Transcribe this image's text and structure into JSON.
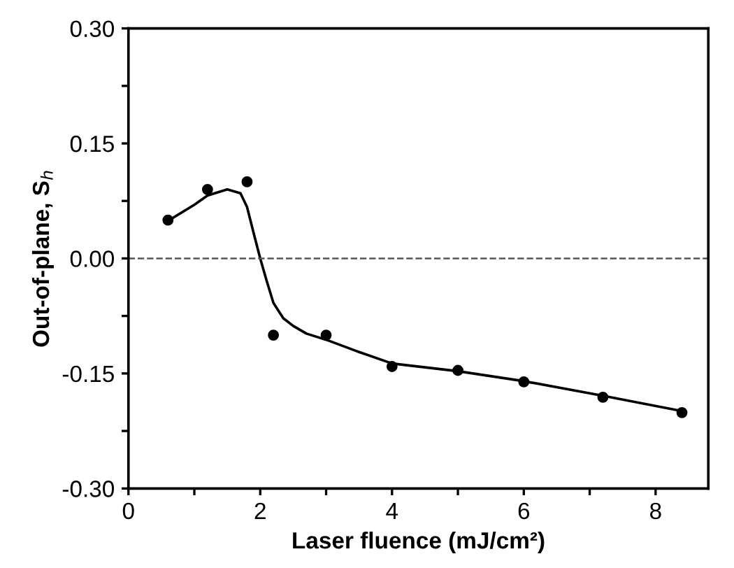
{
  "chart_data": {
    "type": "scatter",
    "xlabel": "Laser fluence (mJ/cm²)",
    "ylabel": "Out-of-plane, S$_{h}$",
    "xlim": [
      0,
      8.8
    ],
    "ylim": [
      -0.3,
      0.3
    ],
    "xticks": [
      0,
      {
        "value": 1,
        "label": null
      },
      2,
      {
        "value": 3,
        "label": null
      },
      4,
      {
        "value": 5,
        "label": null
      },
      6,
      {
        "value": 7,
        "label": null
      },
      8
    ],
    "yticks": [
      {
        "value": -0.3,
        "label": "-0.30"
      },
      {
        "value": -0.225,
        "label": null
      },
      {
        "value": -0.15,
        "label": "-0.15"
      },
      {
        "value": -0.075,
        "label": null
      },
      {
        "value": 0,
        "label": "0.00"
      },
      {
        "value": 0.075,
        "label": null
      },
      {
        "value": 0.15,
        "label": "0.15"
      },
      {
        "value": 0.225,
        "label": null
      },
      {
        "value": 0.3,
        "label": "0.30"
      }
    ],
    "grid": false,
    "marker": "circle",
    "ref_lines": [
      {
        "axis": "y",
        "value": 0,
        "line_style": "dashed",
        "color": "#555555"
      }
    ],
    "series": [
      {
        "color": "#000000",
        "x": [
          0.6,
          1.2,
          1.8,
          2.2,
          3.0,
          4.0,
          5.0,
          6.0,
          7.2,
          8.4
        ],
        "values": [
          0.05,
          0.09,
          0.1,
          -0.1,
          -0.1,
          -0.141,
          -0.146,
          -0.161,
          -0.181,
          -0.201
        ]
      },
      {
        "type": "line",
        "color": "#000000",
        "marker": "none",
        "line_style": "solid",
        "x": [
          0.6,
          1.0,
          1.2,
          1.5,
          1.7,
          1.8,
          1.9,
          2.0,
          2.1,
          2.2,
          2.35,
          2.5,
          2.7,
          3.0,
          3.5,
          4.0,
          5.0,
          6.0,
          7.2,
          8.4
        ],
        "values": [
          0.049,
          0.07,
          0.082,
          0.09,
          0.085,
          0.067,
          0.033,
          0.0,
          -0.03,
          -0.058,
          -0.078,
          -0.088,
          -0.098,
          -0.106,
          -0.122,
          -0.137,
          -0.147,
          -0.16,
          -0.179,
          -0.199
        ]
      }
    ]
  }
}
